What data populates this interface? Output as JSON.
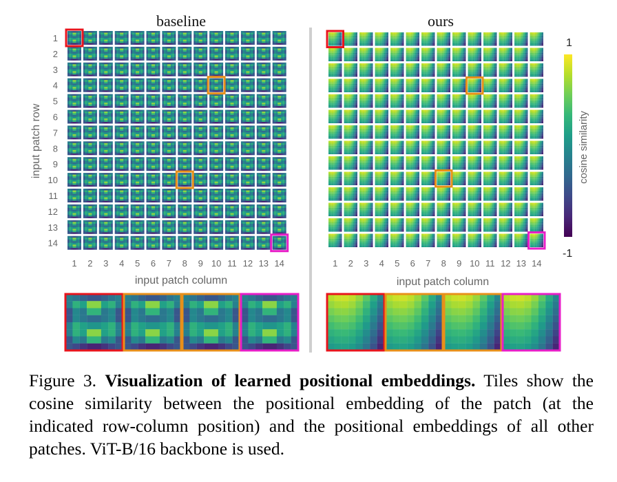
{
  "panels": [
    {
      "id": "baseline",
      "title": "baseline",
      "xlabel": "input patch column",
      "pattern": "baseline"
    },
    {
      "id": "ours",
      "title": "ours",
      "xlabel": "input patch column",
      "pattern": "ours"
    }
  ],
  "grid_size": 14,
  "row_ticks": [
    "1",
    "2",
    "3",
    "4",
    "5",
    "6",
    "7",
    "8",
    "9",
    "10",
    "11",
    "12",
    "13",
    "14"
  ],
  "col_ticks": [
    "1",
    "2",
    "3",
    "4",
    "5",
    "6",
    "7",
    "8",
    "9",
    "10",
    "11",
    "12",
    "13",
    "14"
  ],
  "ylabel": "input patch row",
  "highlights": [
    {
      "row": 1,
      "col": 1,
      "color": "#e8141c"
    },
    {
      "row": 4,
      "col": 10,
      "color": "#e8901a"
    },
    {
      "row": 10,
      "col": 8,
      "color": "#e8901a"
    },
    {
      "row": 14,
      "col": 14,
      "color": "#e81ec8"
    }
  ],
  "colorbar": {
    "label": "cosine similarity",
    "max_label": "1",
    "min_label": "-1",
    "colors": [
      "#fde725",
      "#b5de2b",
      "#6ece58",
      "#35b779",
      "#1f9e89",
      "#26828e",
      "#31688e",
      "#3e4989",
      "#482878",
      "#440154"
    ]
  },
  "caption": {
    "prefix": "Figure 3.",
    "bold": "Visualization of learned positional embeddings.",
    "text": "Tiles show the cosine similarity between the positional embedding of the patch (at the indicated row-column position) and the positional embeddings of all other patches. ViT-B/16 backbone is used."
  }
}
